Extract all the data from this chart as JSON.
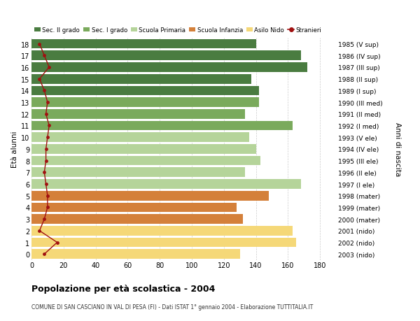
{
  "ages": [
    18,
    17,
    16,
    15,
    14,
    13,
    12,
    11,
    10,
    9,
    8,
    7,
    6,
    5,
    4,
    3,
    2,
    1,
    0
  ],
  "years": [
    "1985 (V sup)",
    "1986 (IV sup)",
    "1987 (III sup)",
    "1988 (II sup)",
    "1989 (I sup)",
    "1990 (III med)",
    "1991 (II med)",
    "1992 (I med)",
    "1993 (V ele)",
    "1994 (IV ele)",
    "1995 (III ele)",
    "1996 (II ele)",
    "1997 (I ele)",
    "1998 (mater)",
    "1999 (mater)",
    "2000 (mater)",
    "2001 (nido)",
    "2002 (nido)",
    "2003 (nido)"
  ],
  "bar_values": [
    140,
    168,
    172,
    137,
    142,
    142,
    133,
    163,
    136,
    140,
    143,
    133,
    168,
    148,
    128,
    132,
    163,
    165,
    130
  ],
  "bar_colors": [
    "#4a7c40",
    "#4a7c40",
    "#4a7c40",
    "#4a7c40",
    "#4a7c40",
    "#7aaa5c",
    "#7aaa5c",
    "#7aaa5c",
    "#b5d49a",
    "#b5d49a",
    "#b5d49a",
    "#b5d49a",
    "#b5d49a",
    "#d4803a",
    "#d4803a",
    "#d4803a",
    "#f5d878",
    "#f5d878",
    "#f5d878"
  ],
  "stranieri_values": [
    5,
    8,
    11,
    5,
    8,
    10,
    9,
    11,
    10,
    9,
    9,
    8,
    9,
    10,
    10,
    8,
    5,
    16,
    8
  ],
  "legend_labels": [
    "Sec. II grado",
    "Sec. I grado",
    "Scuola Primaria",
    "Scuola Infanzia",
    "Asilo Nido",
    "Stranieri"
  ],
  "legend_colors": [
    "#4a7c40",
    "#7aaa5c",
    "#b5d49a",
    "#d4803a",
    "#f5d878",
    "#a01010"
  ],
  "ylabel": "Età alunni",
  "ylabel_right": "Anni di nascita",
  "title": "Popolazione per età scolastica - 2004",
  "subtitle": "COMUNE DI SAN CASCIANO IN VAL DI PESA (FI) - Dati ISTAT 1° gennaio 2004 - Elaborazione TUTTITALIA.IT",
  "xlim": [
    0,
    190
  ],
  "xticks": [
    0,
    20,
    40,
    60,
    80,
    100,
    120,
    140,
    160,
    180
  ],
  "background_color": "#ffffff"
}
